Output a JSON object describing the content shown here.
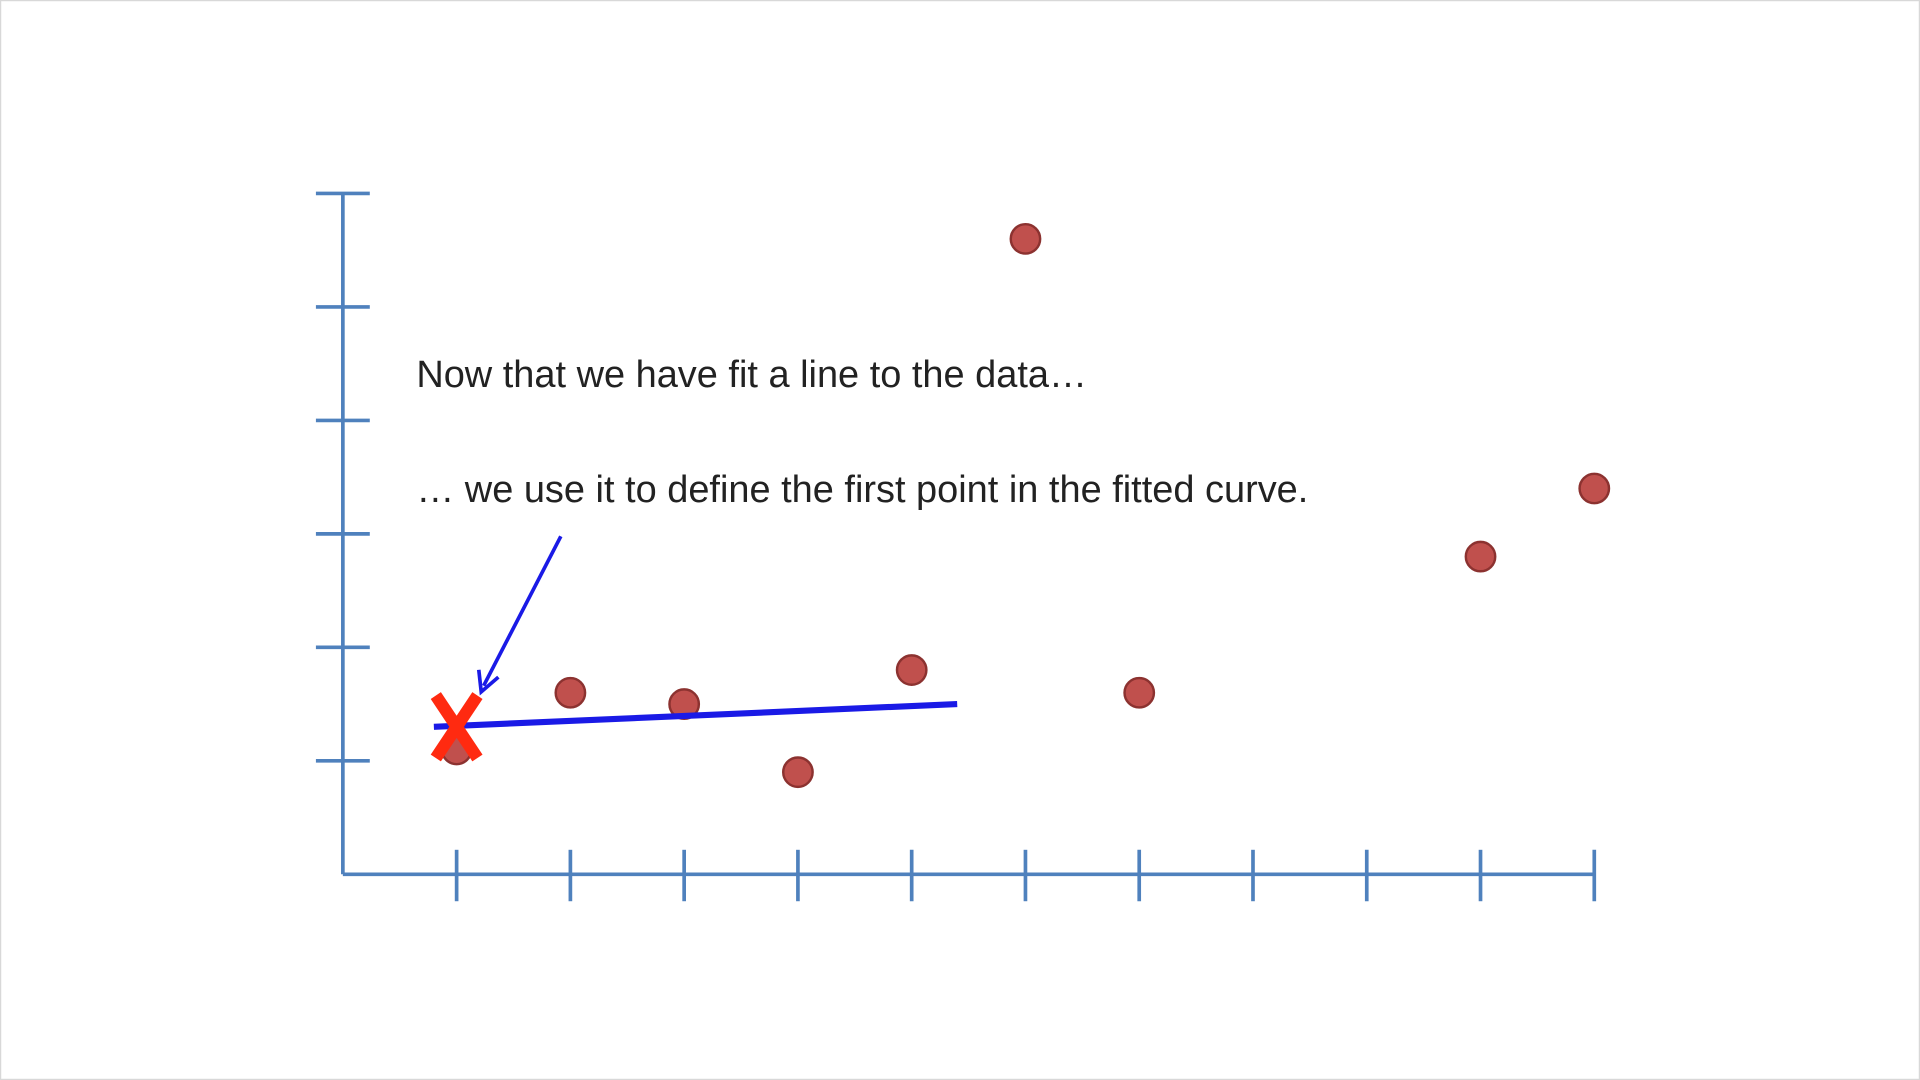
{
  "chart_data": {
    "type": "scatter",
    "annotations": [
      "Now that we have fit a line to the data…",
      "… we use it to define the first point in the fitted curve."
    ],
    "x": [
      1,
      2,
      3,
      4,
      5,
      6,
      7,
      10,
      11
    ],
    "values": [
      1.1,
      1.6,
      1.5,
      0.9,
      1.8,
      5.6,
      1.6,
      2.8,
      3.4
    ],
    "color": "#c0504d",
    "fit_line": {
      "x": [
        0.8,
        5.4
      ],
      "values": [
        1.3,
        1.5
      ],
      "color": "#1a1ae6"
    },
    "fitted_point": {
      "x": 1,
      "value": 1.3,
      "color": "#ff2a10"
    },
    "axis_color": "#4f81bd",
    "xlim": [
      0,
      11
    ],
    "ylim": [
      0,
      6
    ],
    "xticks": [
      1,
      2,
      3,
      4,
      5,
      6,
      7,
      8,
      9,
      10,
      11
    ],
    "yticks": [
      1,
      2,
      3,
      4,
      5,
      6
    ]
  }
}
